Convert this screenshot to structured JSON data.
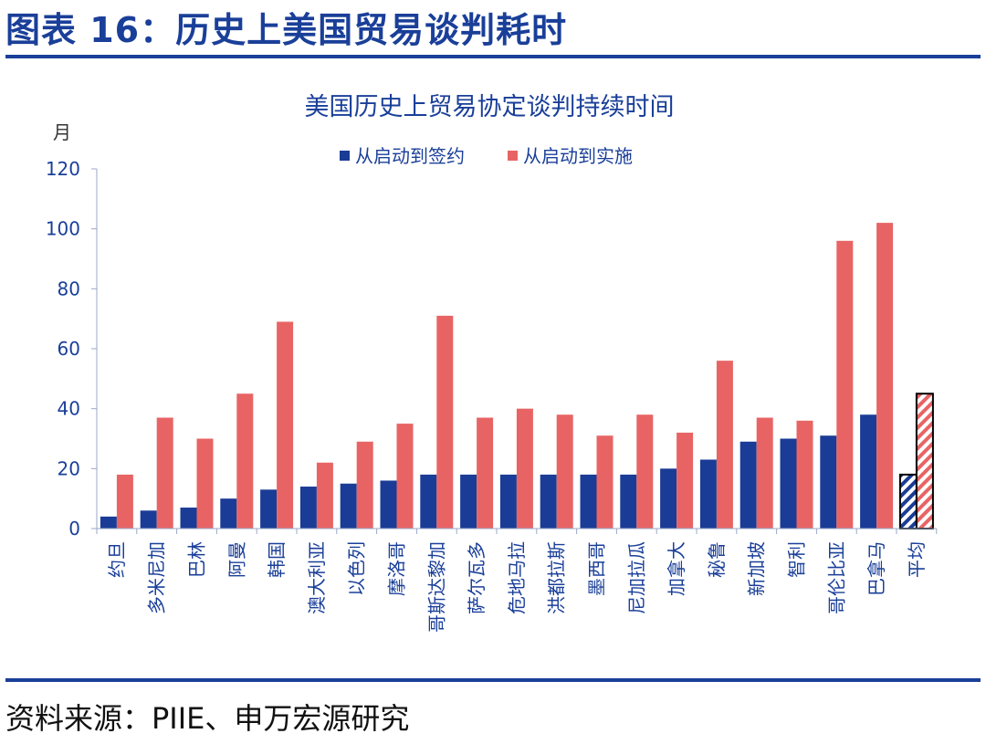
{
  "header": {
    "title": "图表 16：历史上美国贸易谈判耗时"
  },
  "footer": {
    "source": "资料来源：PIIE、申万宏源研究"
  },
  "chart_data": {
    "type": "bar",
    "title": "美国历史上贸易协定谈判持续时间",
    "ylabel": "月",
    "xlabel": "",
    "ylim": [
      0,
      120
    ],
    "yticks": [
      0,
      20,
      40,
      60,
      80,
      100,
      120
    ],
    "grid": false,
    "legend_position": "top",
    "categories": [
      "约旦",
      "多米尼加",
      "巴林",
      "阿曼",
      "韩国",
      "澳大利亚",
      "以色列",
      "摩洛哥",
      "哥斯达黎加",
      "萨尔瓦多",
      "危地马拉",
      "洪都拉斯",
      "墨西哥",
      "尼加拉瓜",
      "加拿大",
      "秘鲁",
      "新加坡",
      "智利",
      "哥伦比亚",
      "巴拿马",
      "平均"
    ],
    "series": [
      {
        "name": "从启动到签约",
        "color": "#1a3c96",
        "values": [
          4,
          6,
          7,
          10,
          13,
          14,
          15,
          16,
          18,
          18,
          18,
          18,
          18,
          18,
          20,
          23,
          29,
          30,
          31,
          38,
          18
        ]
      },
      {
        "name": "从启动到实施",
        "color": "#e86464",
        "values": [
          18,
          37,
          30,
          45,
          69,
          22,
          29,
          35,
          71,
          37,
          40,
          38,
          31,
          38,
          32,
          56,
          37,
          36,
          96,
          102,
          45
        ]
      }
    ],
    "hatched_categories": [
      "平均"
    ]
  }
}
